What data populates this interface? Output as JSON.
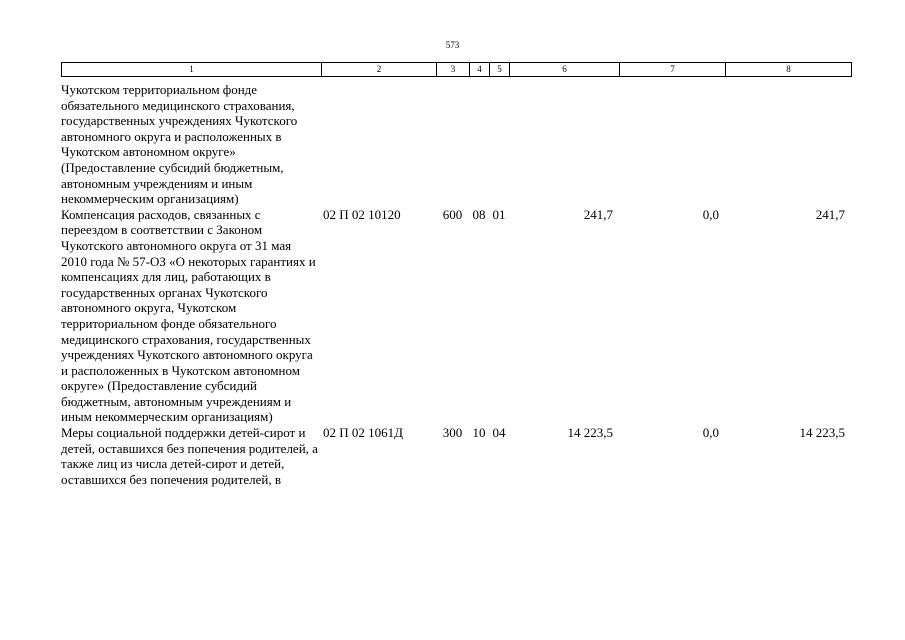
{
  "page_number": "573",
  "header": {
    "columns": [
      "1",
      "2",
      "3",
      "4",
      "5",
      "6",
      "7",
      "8"
    ]
  },
  "rows": [
    {
      "name": "Чукотском территориальном фонде обязательного медицинского страхования, государственных учреждениях Чукотского автономного округа и расположенных в Чукотском автономном округе» (Предоставление субсидий бюджетным, автономным учреждениям и иным некоммерческим организациям)",
      "code": "",
      "vr": "",
      "rz": "",
      "pr": "",
      "sum1": "",
      "sum2": "",
      "sum3": ""
    },
    {
      "name": "Компенсация расходов, связанных с переездом в соответствии с Законом Чукотского автономного округа от 31 мая 2010 года № 57-ОЗ «О некоторых гарантиях и компенсациях для лиц, работающих в государственных органах Чукотского автономного округа, Чукотском территориальном фонде обязательного медицинского страхования, государственных учреждениях Чукотского автономного округа и расположенных в Чукотском автономном округе» (Предоставление субсидий бюджетным, автономным учреждениям и иным некоммерческим организациям)",
      "code": "02 П 02 10120",
      "vr": "600",
      "rz": "08",
      "pr": "01",
      "sum1": "241,7",
      "sum2": "0,0",
      "sum3": "241,7"
    },
    {
      "name": "Меры социальной поддержки детей-сирот и детей, оставшихся без попечения родителей, а также лиц из числа детей-сирот и детей, оставшихся без попечения родителей, в",
      "code": "02 П 02 1061Д",
      "vr": "300",
      "rz": "10",
      "pr": "04",
      "sum1": "14 223,5",
      "sum2": "0,0",
      "sum3": "14 223,5"
    }
  ]
}
